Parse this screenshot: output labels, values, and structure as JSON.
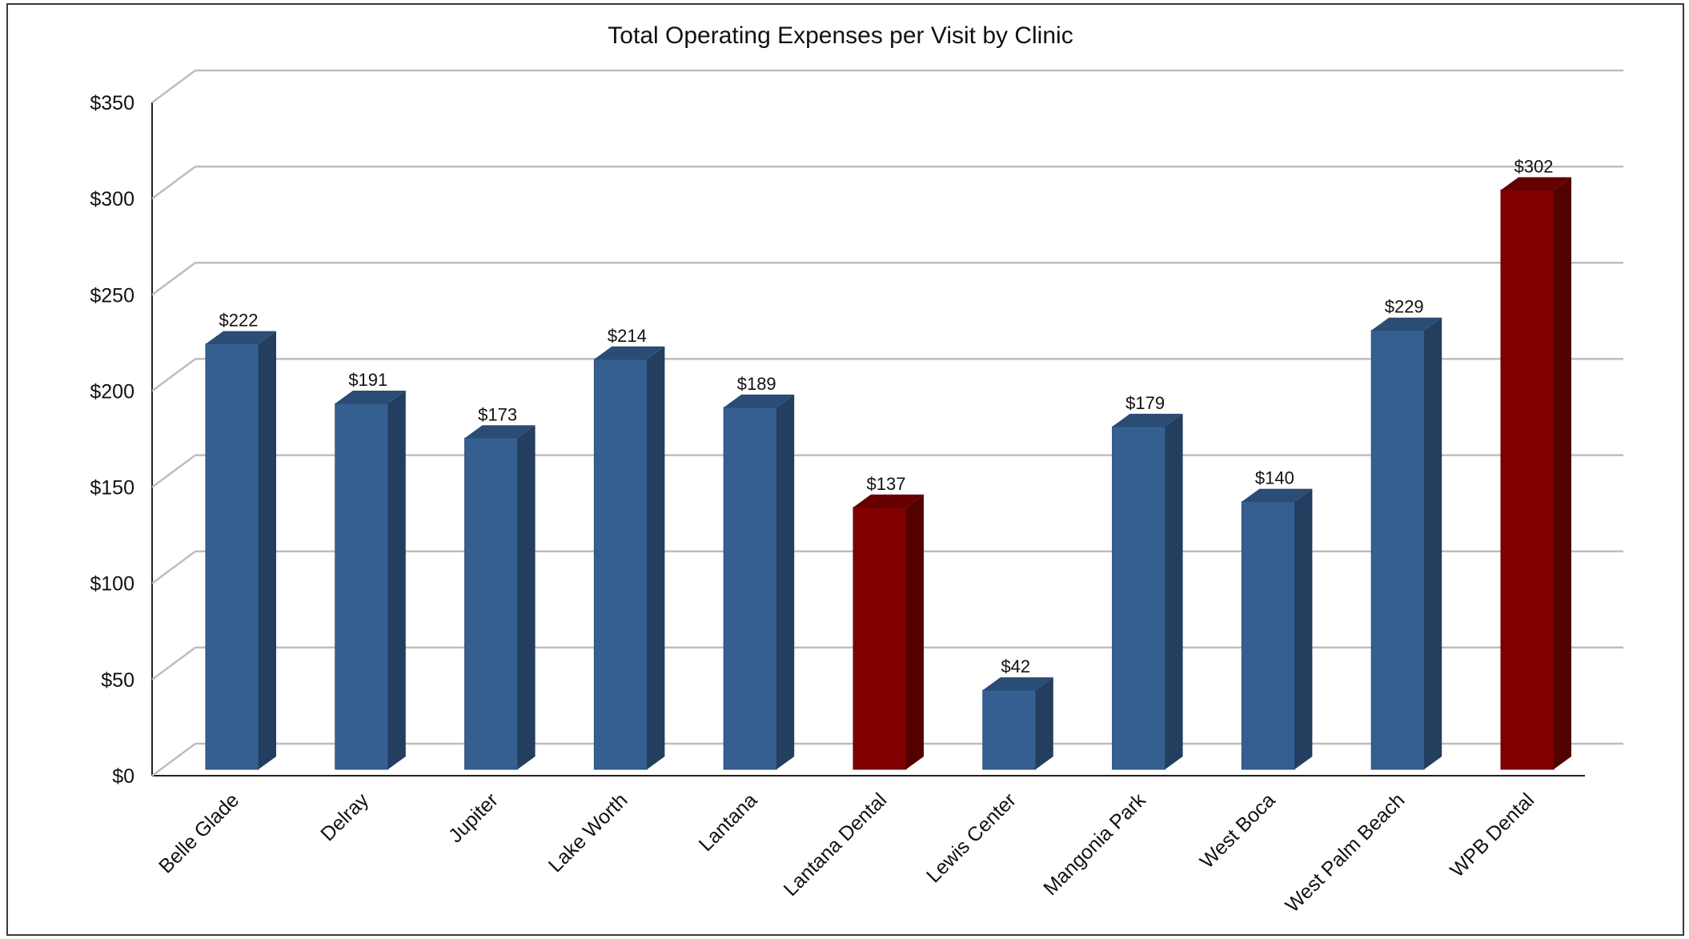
{
  "chart_data": {
    "type": "bar",
    "title": "Total Operating Expenses per Visit by Clinic",
    "xlabel": "",
    "ylabel": "",
    "ylim": [
      0,
      350
    ],
    "yticks": [
      0,
      50,
      100,
      150,
      200,
      250,
      300,
      350
    ],
    "ytick_labels": [
      "$0",
      "$50",
      "$100",
      "$150",
      "$200",
      "$250",
      "$300",
      "$350"
    ],
    "grid": true,
    "legend": "none",
    "style": "3d-column",
    "categories": [
      "Belle Glade",
      "Delray",
      "Jupiter",
      "Lake Worth",
      "Lantana",
      "Lantana Dental",
      "Lewis Center",
      "Mangonia Park",
      "West Boca",
      "West Palm Beach",
      "WPB Dental"
    ],
    "values": [
      222,
      191,
      173,
      214,
      189,
      137,
      42,
      179,
      140,
      229,
      302
    ],
    "data_labels": [
      "$222",
      "$191",
      "$173",
      "$214",
      "$189",
      "$137",
      "$42",
      "$179",
      "$140",
      "$229",
      "$302"
    ],
    "bar_colors": [
      "#365f91",
      "#365f91",
      "#365f91",
      "#365f91",
      "#365f91",
      "#800000",
      "#365f91",
      "#365f91",
      "#365f91",
      "#365f91",
      "#800000"
    ]
  }
}
